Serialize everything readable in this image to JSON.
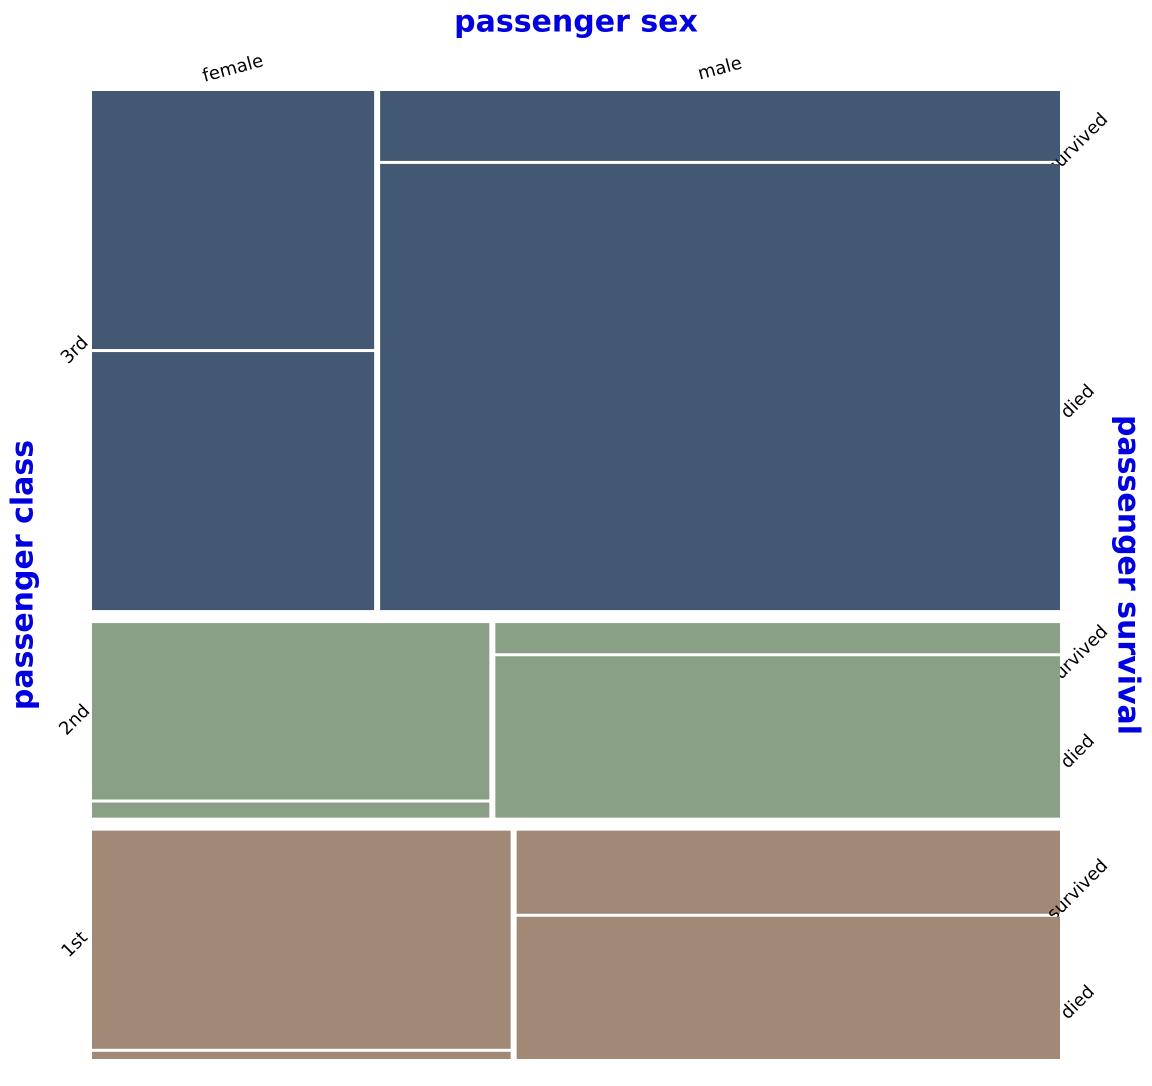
{
  "chart_data": {
    "type": "mosaic",
    "title": "passenger sex",
    "y_label": "passenger class",
    "y2_label": "passenger survival",
    "columns": [
      "female",
      "male"
    ],
    "levels": [
      "survived",
      "died"
    ],
    "series": [
      {
        "name": "3rd",
        "color": "#435872",
        "values": [
          [
            72,
            72
          ],
          [
            47,
            300
          ]
        ]
      },
      {
        "name": "2nd",
        "color": "#8aa086",
        "values": [
          [
            70,
            6
          ],
          [
            17,
            91
          ]
        ]
      },
      {
        "name": "1st",
        "color": "#a18976",
        "values": [
          [
            91,
            3
          ],
          [
            45,
            77
          ]
        ]
      }
    ]
  }
}
